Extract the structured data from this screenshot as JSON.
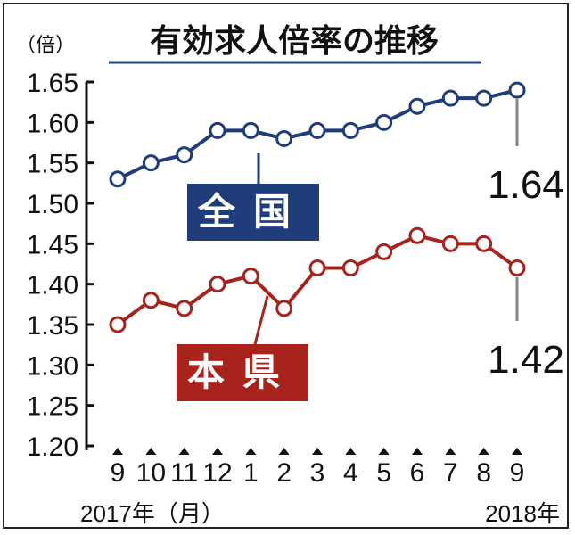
{
  "chart_data": {
    "type": "line",
    "title": "有効求人倍率の推移",
    "ylabel": "（倍）",
    "ylim": [
      1.2,
      1.65
    ],
    "yticks": [
      "1.65",
      "1.60",
      "1.55",
      "1.50",
      "1.45",
      "1.40",
      "1.35",
      "1.30",
      "1.25",
      "1.20"
    ],
    "categories": [
      "9",
      "10",
      "11",
      "12",
      "1",
      "2",
      "3",
      "4",
      "5",
      "6",
      "7",
      "8",
      "9"
    ],
    "x_start_label": "2017年（月）",
    "x_end_label": "2018年",
    "grid": false,
    "series": [
      {
        "name": "全国",
        "color": "#1f3d7a",
        "values": [
          1.53,
          1.55,
          1.56,
          1.59,
          1.59,
          1.58,
          1.59,
          1.59,
          1.6,
          1.62,
          1.63,
          1.63,
          1.64
        ],
        "last_label": "1.64"
      },
      {
        "name": "本県",
        "color": "#a8231c",
        "values": [
          1.35,
          1.38,
          1.37,
          1.4,
          1.41,
          1.37,
          1.42,
          1.42,
          1.44,
          1.46,
          1.45,
          1.45,
          1.42
        ],
        "last_label": "1.42"
      }
    ]
  }
}
